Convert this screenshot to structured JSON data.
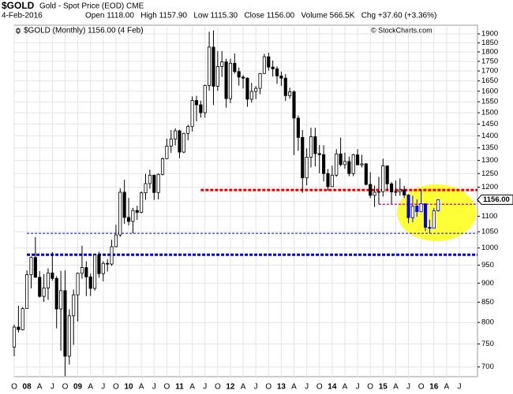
{
  "header": {
    "symbol": "$GOLD",
    "name": "Gold - Spot Price (EOD) CME",
    "date": "4-Feb-2016",
    "quote": "Open 1118.00   High 1157.90   Low 1115.30   Close 1156.00   Volume 566.5K   Chg +37.60 (+3.36%)",
    "credit": "© StockCharts.com"
  },
  "chart_data": {
    "type": "candlestick",
    "legend": "$GOLD (Monthly) 1156.00 (4 Feb)",
    "price_label": "1156.00",
    "categories": [
      "O",
      null,
      null,
      "08",
      null,
      null,
      "A",
      null,
      null,
      "J",
      null,
      null,
      "O",
      null,
      null,
      "09",
      null,
      null,
      "A",
      null,
      null,
      "J",
      null,
      null,
      "O",
      null,
      null,
      "10",
      null,
      null,
      "A",
      null,
      null,
      "J",
      null,
      null,
      "O",
      null,
      null,
      "11",
      null,
      null,
      "A",
      null,
      null,
      "J",
      null,
      null,
      "O",
      null,
      null,
      "12",
      null,
      null,
      "A",
      null,
      null,
      "J",
      null,
      null,
      "O",
      null,
      null,
      "13",
      null,
      null,
      "A",
      null,
      null,
      "J",
      null,
      null,
      "O",
      null,
      null,
      "14",
      null,
      null,
      "A",
      null,
      null,
      "J",
      null,
      null,
      "O",
      null,
      null,
      "15",
      null,
      null,
      "A",
      null,
      null,
      "J",
      null,
      null,
      "O",
      null,
      null,
      "16",
      null,
      null,
      "A",
      null,
      null,
      "J"
    ],
    "open": [
      743,
      789,
      783,
      834,
      923,
      972,
      916,
      865,
      887,
      928,
      913,
      833,
      880,
      723,
      816,
      869,
      927,
      943,
      917,
      886,
      979,
      926,
      955,
      953,
      1004,
      1040,
      1182,
      1096,
      1083,
      1119,
      1113,
      1180,
      1213,
      1244,
      1181,
      1247,
      1307,
      1357,
      1386,
      1421,
      1333,
      1410,
      1439,
      1556,
      1536,
      1500,
      1628,
      1826,
      1624,
      1723,
      1747,
      1565,
      1740,
      1697,
      1669,
      1664,
      1562,
      1599,
      1614,
      1687,
      1774,
      1720,
      1711,
      1675,
      1664,
      1579,
      1597,
      1476,
      1393,
      1234,
      1313,
      1396,
      1327,
      1323,
      1250,
      1202,
      1244,
      1326,
      1284,
      1296,
      1250,
      1322,
      1283,
      1287,
      1210,
      1171,
      1182,
      1184,
      1279,
      1212,
      1183,
      1184,
      1190,
      1172,
      1095,
      1134,
      1115,
      1142,
      1064,
      1061,
      1118,
      null,
      null,
      null,
      null,
      null
    ],
    "high": [
      795,
      841,
      838,
      935,
      975,
      1033,
      933,
      925,
      941,
      988,
      919,
      934,
      935,
      832,
      883,
      929,
      1007,
      961,
      926,
      983,
      989,
      961,
      967,
      1025,
      1072,
      1196,
      1227,
      1162,
      1128,
      1135,
      1185,
      1249,
      1265,
      1246,
      1251,
      1312,
      1388,
      1424,
      1432,
      1425,
      1413,
      1447,
      1575,
      1578,
      1555,
      1632,
      1912,
      1920,
      1804,
      1804,
      1764,
      1764,
      1792,
      1718,
      1679,
      1668,
      1641,
      1625,
      1690,
      1790,
      1796,
      1754,
      1724,
      1697,
      1684,
      1617,
      1605,
      1488,
      1424,
      1348,
      1434,
      1434,
      1362,
      1361,
      1267,
      1280,
      1345,
      1392,
      1331,
      1315,
      1326,
      1345,
      1322,
      1290,
      1255,
      1206,
      1238,
      1307,
      1281,
      1219,
      1224,
      1232,
      1205,
      1175,
      1170,
      1157,
      1191,
      1143,
      1089,
      1128,
      1157.9,
      null,
      null,
      null,
      null,
      null
    ],
    "low": [
      723,
      776,
      781,
      834,
      886,
      915,
      862,
      851,
      856,
      907,
      786,
      735,
      681,
      705,
      748,
      802,
      912,
      866,
      866,
      880,
      915,
      905,
      932,
      948,
      1002,
      1034,
      1075,
      1070,
      1045,
      1088,
      1110,
      1155,
      1195,
      1155,
      1157,
      1243,
      1305,
      1330,
      1360,
      1309,
      1329,
      1381,
      1418,
      1462,
      1478,
      1478,
      1603,
      1535,
      1602,
      1670,
      1523,
      1544,
      1687,
      1627,
      1613,
      1527,
      1546,
      1563,
      1586,
      1687,
      1702,
      1672,
      1636,
      1626,
      1554,
      1565,
      1321,
      1338,
      1180,
      1207,
      1273,
      1277,
      1251,
      1221,
      1187,
      1202,
      1238,
      1277,
      1268,
      1240,
      1240,
      1282,
      1273,
      1206,
      1161,
      1131,
      1141,
      1167,
      1190,
      1142,
      1169,
      1170,
      1162,
      1077,
      1080,
      1098,
      1113,
      1052,
      1046,
      1061,
      1115.3,
      null,
      null,
      null,
      null,
      null
    ],
    "close": [
      789,
      783,
      834,
      923,
      972,
      916,
      865,
      887,
      928,
      913,
      833,
      880,
      723,
      816,
      869,
      927,
      943,
      917,
      886,
      979,
      926,
      955,
      953,
      1004,
      1040,
      1182,
      1096,
      1083,
      1119,
      1113,
      1180,
      1213,
      1244,
      1181,
      1247,
      1307,
      1357,
      1386,
      1421,
      1333,
      1410,
      1439,
      1556,
      1536,
      1500,
      1628,
      1826,
      1624,
      1723,
      1747,
      1565,
      1740,
      1697,
      1669,
      1664,
      1562,
      1599,
      1614,
      1687,
      1774,
      1720,
      1711,
      1675,
      1664,
      1579,
      1597,
      1476,
      1393,
      1234,
      1313,
      1396,
      1327,
      1323,
      1250,
      1202,
      1244,
      1326,
      1284,
      1296,
      1250,
      1322,
      1283,
      1287,
      1210,
      1171,
      1182,
      1184,
      1279,
      1212,
      1183,
      1184,
      1190,
      1172,
      1095,
      1134,
      1115,
      1142,
      1064,
      1061,
      1118,
      1156,
      null,
      null,
      null,
      null,
      null
    ],
    "colors": [
      "#000000",
      "#000000",
      "#000000",
      "#000000",
      "#000000",
      "#000000",
      "#000000",
      "#000000",
      "#000000",
      "#000000",
      "#000000",
      "#000000",
      "#000000",
      "#000000",
      "#000000",
      "#000000",
      "#000000",
      "#000000",
      "#000000",
      "#000000",
      "#000000",
      "#000000",
      "#000000",
      "#000000",
      "#000000",
      "#000000",
      "#000000",
      "#000000",
      "#000000",
      "#000000",
      "#000000",
      "#000000",
      "#000000",
      "#000000",
      "#000000",
      "#000000",
      "#000000",
      "#000000",
      "#000000",
      "#000000",
      "#000000",
      "#000000",
      "#000000",
      "#000000",
      "#000000",
      "#000000",
      "#000000",
      "#000000",
      "#000000",
      "#000000",
      "#000000",
      "#000000",
      "#000000",
      "#000000",
      "#000000",
      "#000000",
      "#000000",
      "#000000",
      "#000000",
      "#000000",
      "#000000",
      "#000000",
      "#000000",
      "#000000",
      "#000000",
      "#000000",
      "#000000",
      "#000000",
      "#000000",
      "#000000",
      "#000000",
      "#000000",
      "#000000",
      "#000000",
      "#000000",
      "#000000",
      "#000000",
      "#000000",
      "#000000",
      "#000000",
      "#000000",
      "#000000",
      "#000000",
      "#000000",
      "#000000",
      "#000000",
      "#000000",
      "#000000",
      "#000000",
      "#000000",
      "#000000",
      "#000000",
      "#000000",
      "#0000ff",
      "#0000ff",
      "#0000ff",
      "#0000ff",
      "#0000ff",
      "#0000ff",
      "#0000ff",
      "#0000ff",
      null,
      null,
      null,
      null,
      null
    ],
    "hlines": [
      {
        "value": 1190,
        "start": 44,
        "color": "#e00000",
        "width": 3
      },
      {
        "value": 1140,
        "start": 86,
        "color": "#e0208a",
        "width": 1.5
      },
      {
        "value": 1045,
        "start": 3,
        "color": "#0000c0",
        "width": 1
      },
      {
        "value": 980,
        "start": 3,
        "color": "#0000c0",
        "width": 3
      }
    ],
    "log_scale": true,
    "ylim": [
      680,
      1950
    ],
    "yticks": [
      700,
      750,
      800,
      850,
      900,
      950,
      1000,
      1050,
      1100,
      1150,
      1200,
      1250,
      1300,
      1350,
      1400,
      1450,
      1500,
      1550,
      1600,
      1650,
      1700,
      1750,
      1800,
      1850,
      1900
    ],
    "grid": true
  }
}
